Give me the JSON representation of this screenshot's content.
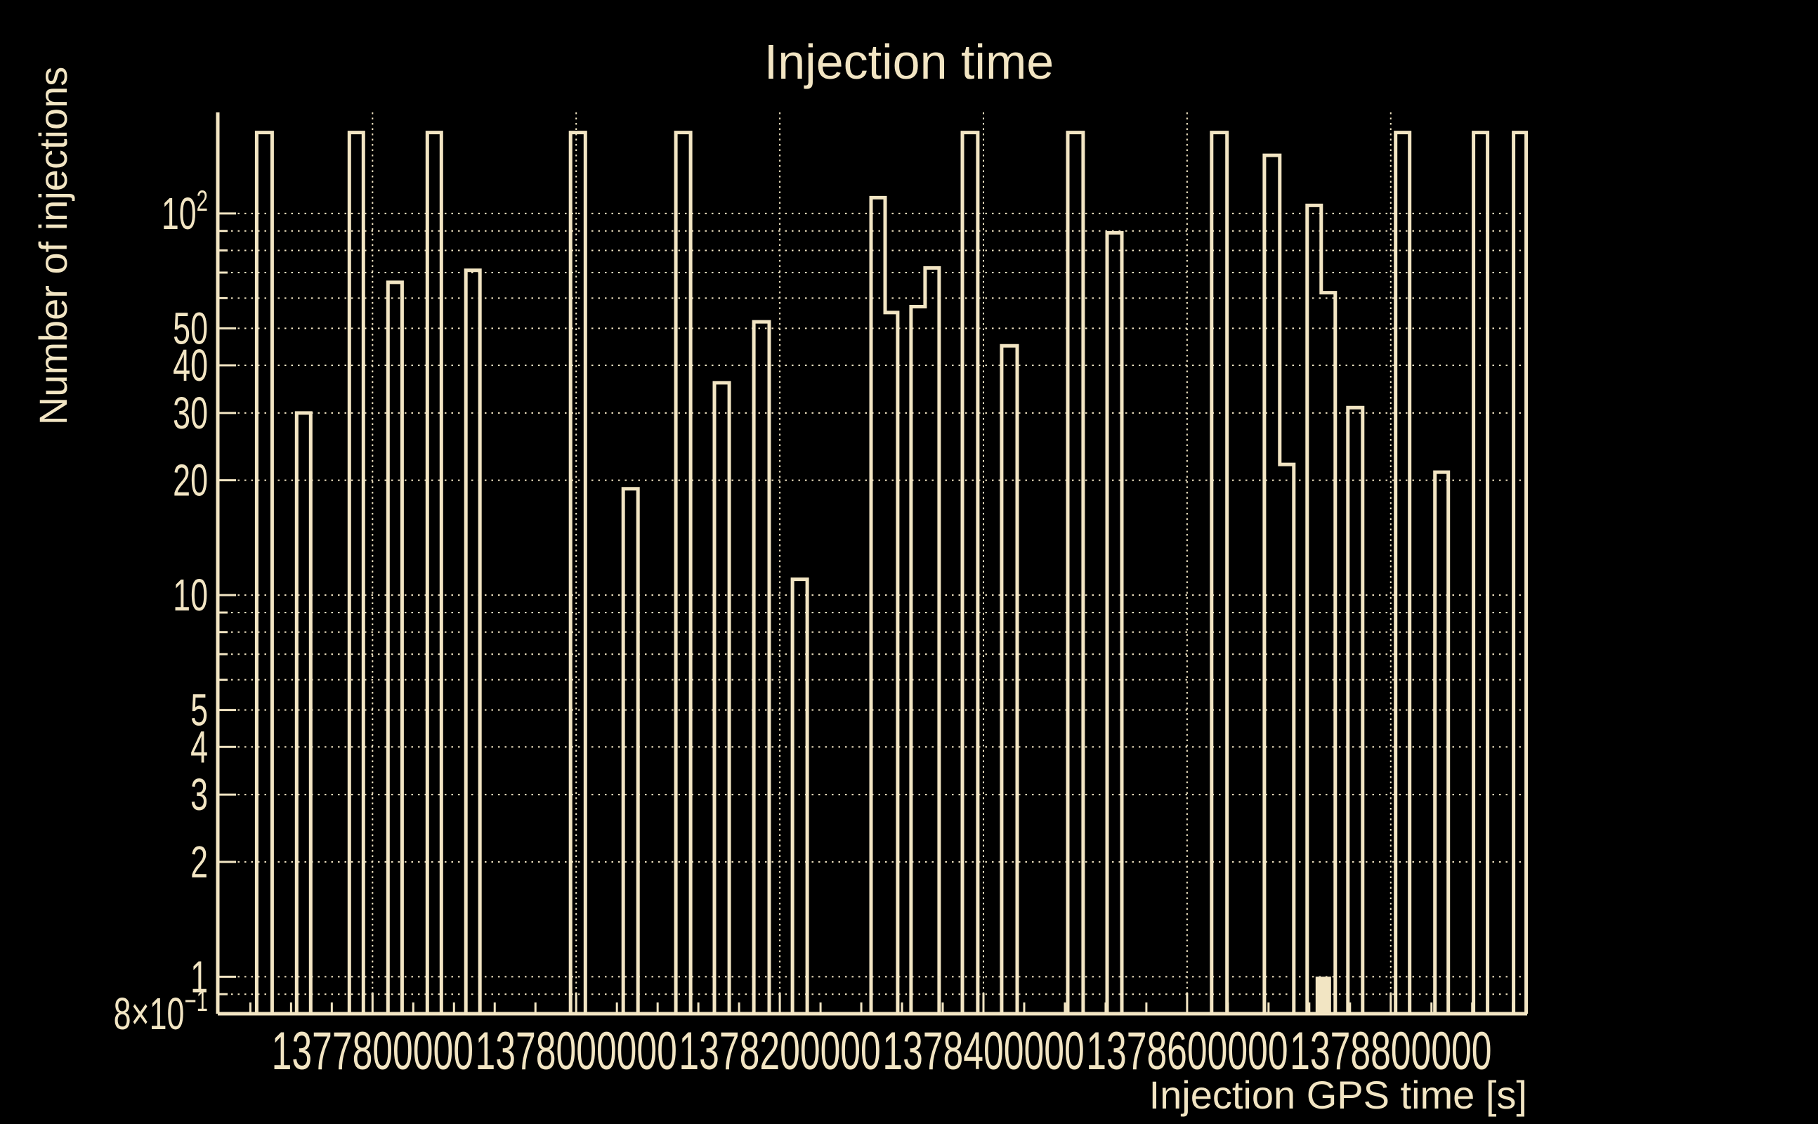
{
  "title": "Injection time",
  "colors": {
    "background": "#000000",
    "foreground": "#f2e5c3"
  },
  "chart_data": {
    "type": "bar",
    "title": "Injection time",
    "xlabel": "Injection GPS time [s]",
    "ylabel": "Number of injections",
    "x_axis": {
      "min": 1377648000,
      "max": 1378934000,
      "major_ticks": [
        {
          "value": 1377800000,
          "label": "1377800000"
        },
        {
          "value": 1378000000,
          "label": "1378000000"
        },
        {
          "value": 1378200000,
          "label": "1378200000"
        },
        {
          "value": 1378400000,
          "label": "1378400000"
        },
        {
          "value": 1378600000,
          "label": "1378600000"
        },
        {
          "value": 1378800000,
          "label": "1378800000"
        }
      ],
      "minor_tick_step": 40000,
      "gridlines": "dotted vertical at major ticks"
    },
    "y_axis": {
      "scale": "log",
      "min": 0.8,
      "max": 184,
      "labeled_ticks": [
        {
          "value": 100,
          "label": "10",
          "sup": "2"
        },
        {
          "value": 50,
          "label": "50"
        },
        {
          "value": 40,
          "label": "40"
        },
        {
          "value": 30,
          "label": "30"
        },
        {
          "value": 20,
          "label": "20"
        },
        {
          "value": 10,
          "label": "10"
        },
        {
          "value": 5,
          "label": "5"
        },
        {
          "value": 4,
          "label": "4"
        },
        {
          "value": 3,
          "label": "3"
        },
        {
          "value": 2,
          "label": "2"
        },
        {
          "value": 1,
          "label": "1"
        },
        {
          "value": 0.8,
          "label": "8×10",
          "sup": "−1"
        }
      ],
      "minor_ticks": [
        90,
        80,
        70,
        60,
        9,
        8,
        7,
        6,
        0.9
      ],
      "gridlines": "dotted horizontal at all ticks"
    },
    "bins": [
      [
        1377686200,
        1377701400,
        163
      ],
      [
        1377725500,
        1377739300,
        30
      ],
      [
        1377777200,
        1377791000,
        163
      ],
      [
        1377815200,
        1377829000,
        66
      ],
      [
        1377853800,
        1377867600,
        163
      ],
      [
        1377891700,
        1377905500,
        71
      ],
      [
        1377994500,
        1378009000,
        163
      ],
      [
        1378046200,
        1378060700,
        19
      ],
      [
        1378097900,
        1378112400,
        163
      ],
      [
        1378135800,
        1378150300,
        36
      ],
      [
        1378174500,
        1378189600,
        52
      ],
      [
        1378212400,
        1378226900,
        11
      ],
      [
        1378289600,
        1378303400,
        110
      ],
      [
        1378303400,
        1378315800,
        55
      ],
      [
        1378328900,
        1378342700,
        57
      ],
      [
        1378342700,
        1378356500,
        72
      ],
      [
        1378379300,
        1378394400,
        163
      ],
      [
        1378417900,
        1378433100,
        45
      ],
      [
        1378482800,
        1378497900,
        163
      ],
      [
        1378521400,
        1378535900,
        89
      ],
      [
        1378624100,
        1378639200,
        163
      ],
      [
        1378675900,
        1378691000,
        142
      ],
      [
        1378691000,
        1378704800,
        22
      ],
      [
        1378717900,
        1378731700,
        105
      ],
      [
        1378731700,
        1378745500,
        62
      ],
      [
        1378757900,
        1378772400,
        31
      ],
      [
        1378804800,
        1378818600,
        163
      ],
      [
        1378843400,
        1378856500,
        21
      ],
      [
        1378881300,
        1378895100,
        163
      ],
      [
        1378920600,
        1378933000,
        163
      ]
    ],
    "filled_bin": {
      "gps_start": 1378726200,
      "gps_end": 1378741400,
      "count": 1
    }
  }
}
